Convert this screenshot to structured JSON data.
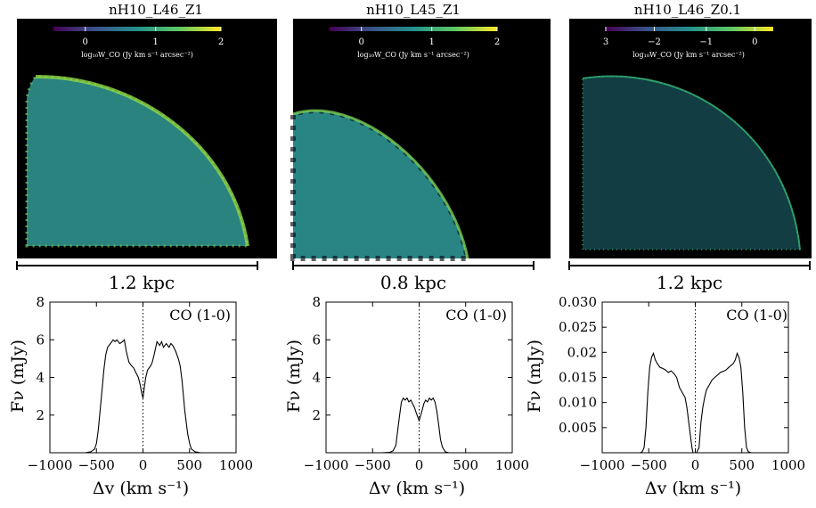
{
  "chart_data": [
    {
      "type": "image",
      "title": "nH10_L46_Z1",
      "colorbar": {
        "ticks": [
          "0",
          "1",
          "2"
        ],
        "label": "log₁₀W_CO (Jy km s⁻¹ arcsec⁻²)",
        "colormap": "viridis"
      },
      "scale_label": "1.2 kpc",
      "morphology": "quarter-disk"
    },
    {
      "type": "image",
      "title": "nH10_L45_Z1",
      "colorbar": {
        "ticks": [
          "0",
          "1",
          "2"
        ],
        "label": "log₁₀W_CO (Jy km s⁻¹ arcsec⁻²)",
        "colormap": "viridis"
      },
      "scale_label": "0.8 kpc",
      "morphology": "quarter-disk"
    },
    {
      "type": "image",
      "title": "nH10_L46_Z0.1",
      "colorbar": {
        "ticks": [
          "3",
          "−2",
          "−1",
          "0"
        ],
        "label": "log₁₀W_CO (Jy km s⁻¹ arcsec⁻²)",
        "colormap": "viridis"
      },
      "scale_label": "1.2 kpc",
      "morphology": "quarter-disk"
    },
    {
      "type": "line",
      "annotation": "CO (1-0)",
      "xlabel": "Δv (km s⁻¹)",
      "ylabel": "Fν (mJy)",
      "xlim": [
        -1000,
        1000
      ],
      "ylim": [
        0,
        8
      ],
      "xticks": [
        -1000,
        -500,
        0,
        500,
        1000
      ],
      "yticks": [
        2,
        4,
        6,
        8
      ],
      "ytick_labels": [
        "2",
        "4",
        "6",
        "8"
      ],
      "xtick_labels": [
        "−1000",
        "−500",
        "0",
        "500",
        "1000"
      ],
      "series": [
        {
          "name": "CO (1-0)",
          "x": [
            -1000,
            -620,
            -560,
            -520,
            -500,
            -480,
            -450,
            -420,
            -400,
            -380,
            -350,
            -320,
            -300,
            -280,
            -250,
            -220,
            -200,
            -180,
            -150,
            -120,
            -100,
            -80,
            -50,
            -30,
            -15,
            0,
            15,
            30,
            50,
            80,
            100,
            120,
            150,
            180,
            200,
            220,
            250,
            280,
            300,
            320,
            350,
            380,
            400,
            420,
            450,
            480,
            500,
            520,
            560,
            620,
            1000
          ],
          "y": [
            0,
            0,
            0.05,
            0.2,
            0.5,
            1.2,
            2.8,
            4.4,
            5.2,
            5.6,
            5.8,
            6.0,
            5.9,
            6.0,
            5.8,
            5.9,
            6.0,
            5.4,
            4.8,
            4.6,
            4.5,
            4.3,
            4.0,
            3.6,
            3.2,
            2.9,
            3.5,
            4.0,
            4.4,
            4.6,
            4.8,
            5.2,
            5.9,
            5.7,
            5.9,
            5.6,
            5.8,
            5.6,
            5.8,
            5.7,
            5.4,
            5.0,
            4.6,
            3.8,
            2.2,
            1.0,
            0.5,
            0.2,
            0.05,
            0,
            0
          ]
        }
      ]
    },
    {
      "type": "line",
      "annotation": "CO (1-0)",
      "xlabel": "Δv (km s⁻¹)",
      "ylabel": "Fν (mJy)",
      "xlim": [
        -1000,
        1000
      ],
      "ylim": [
        0,
        8
      ],
      "xticks": [
        -1000,
        -500,
        0,
        500,
        1000
      ],
      "yticks": [
        2,
        4,
        6,
        8
      ],
      "ytick_labels": [
        "2",
        "4",
        "6",
        "8"
      ],
      "xtick_labels": [
        "−1000",
        "−500",
        "0",
        "500",
        "1000"
      ],
      "series": [
        {
          "name": "CO (1-0)",
          "x": [
            -1000,
            -400,
            -320,
            -280,
            -250,
            -230,
            -210,
            -190,
            -170,
            -150,
            -130,
            -110,
            -90,
            -70,
            -50,
            -30,
            0,
            30,
            50,
            70,
            90,
            110,
            130,
            150,
            170,
            190,
            210,
            230,
            250,
            280,
            320,
            1000
          ],
          "y": [
            0,
            0,
            0.02,
            0.1,
            0.4,
            1.2,
            2.0,
            2.7,
            2.9,
            2.8,
            2.9,
            2.7,
            2.8,
            2.6,
            2.4,
            2.1,
            1.7,
            2.2,
            2.6,
            2.8,
            2.7,
            2.9,
            2.8,
            2.9,
            2.7,
            2.2,
            1.5,
            0.7,
            0.3,
            0.05,
            0,
            0
          ]
        }
      ]
    },
    {
      "type": "line",
      "annotation": "CO (1-0)",
      "xlabel": "Δv (km s⁻¹)",
      "ylabel": "Fν (mJy)",
      "xlim": [
        -1000,
        1000
      ],
      "ylim": [
        0,
        0.03
      ],
      "xticks": [
        -1000,
        -500,
        0,
        500,
        1000
      ],
      "yticks": [
        0.005,
        0.01,
        0.015,
        0.02,
        0.025,
        0.03
      ],
      "ytick_labels": [
        "0.005",
        "0.010",
        "0.015",
        "0.02",
        "0.025",
        "0.030"
      ],
      "xtick_labels": [
        "−1000",
        "−500",
        "0",
        "500",
        "1000"
      ],
      "series": [
        {
          "name": "CO (1-0)",
          "x": [
            -1000,
            -620,
            -590,
            -570,
            -550,
            -530,
            -510,
            -490,
            -470,
            -450,
            -430,
            -410,
            -380,
            -350,
            -320,
            -290,
            -260,
            -230,
            -200,
            -170,
            -140,
            -110,
            -90,
            -70,
            -50,
            -35,
            -25,
            -15,
            0,
            15,
            25,
            40,
            60,
            80,
            100,
            120,
            150,
            180,
            210,
            240,
            270,
            300,
            330,
            360,
            390,
            410,
            430,
            450,
            470,
            490,
            510,
            530,
            550,
            570,
            600,
            1000
          ],
          "y": [
            0,
            0,
            0,
            0.0002,
            0.001,
            0.005,
            0.012,
            0.017,
            0.019,
            0.0198,
            0.0185,
            0.0178,
            0.017,
            0.0168,
            0.0165,
            0.016,
            0.0163,
            0.0158,
            0.015,
            0.013,
            0.012,
            0.011,
            0.009,
            0.006,
            0.003,
            0.001,
            0,
            0,
            0,
            0,
            0.0005,
            0.001,
            0.006,
            0.009,
            0.011,
            0.0125,
            0.0135,
            0.0145,
            0.015,
            0.0155,
            0.016,
            0.0162,
            0.0165,
            0.017,
            0.0175,
            0.0178,
            0.0185,
            0.0198,
            0.019,
            0.017,
            0.012,
            0.005,
            0.001,
            0.0002,
            0,
            0
          ]
        }
      ]
    }
  ]
}
